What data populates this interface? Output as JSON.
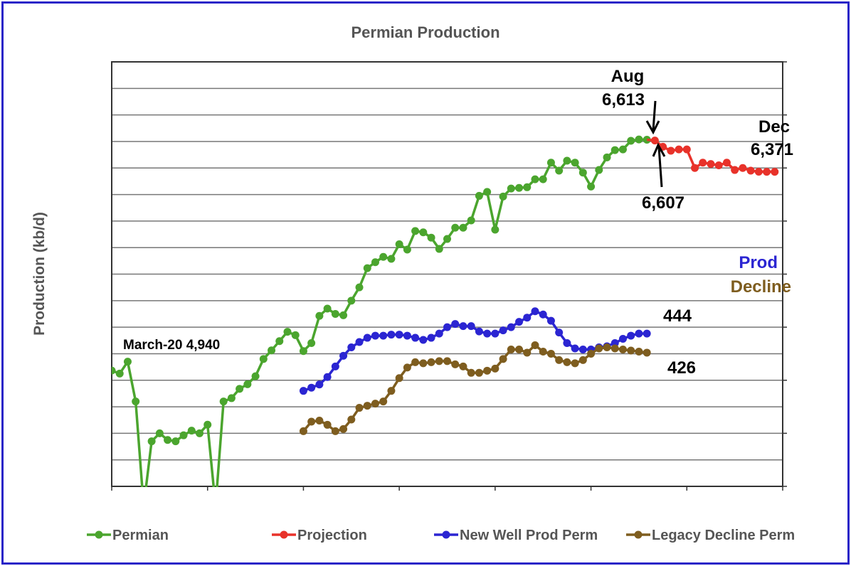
{
  "chart_data": {
    "type": "line",
    "title": "Permian Production",
    "ylabel": "Production (kb/d)",
    "ylim": [
      4000,
      7200
    ],
    "y2lim": [
      300,
      700
    ],
    "yticks": [
      "4,000",
      "4,200",
      "4,400",
      "4,600",
      "4,800",
      "5,000",
      "5,200",
      "5,400",
      "5,600",
      "5,800",
      "6,000",
      "6,200",
      "6,400",
      "6,600",
      "6,800",
      "7,000",
      "7,200"
    ],
    "y2ticks": [
      "300",
      "350",
      "400",
      "450",
      "500",
      "550",
      "600",
      "650",
      "700"
    ],
    "xticks": [
      "Jan-20",
      "Jan-21",
      "Jan-22",
      "Jan-23",
      "Jan-24",
      "Jan-25",
      "Jan-26",
      "Jan-27"
    ],
    "grid": true,
    "legend_position": "bottom",
    "series": [
      {
        "name": "Permian",
        "axis": "left",
        "color": "#4ba52e",
        "start_month": 0,
        "values": [
          4873,
          4850,
          4940,
          4640,
          3850,
          4340,
          4400,
          4350,
          4340,
          4385,
          4420,
          4400,
          4465,
          3850,
          4640,
          4665,
          4735,
          4770,
          4830,
          4960,
          5025,
          5095,
          5165,
          5140,
          5020,
          5080,
          5285,
          5340,
          5300,
          5290,
          5400,
          5500,
          5645,
          5690,
          5730,
          5715,
          5825,
          5785,
          5925,
          5915,
          5875,
          5790,
          5865,
          5950,
          5950,
          6005,
          6190,
          6220,
          5935,
          6185,
          6245,
          6250,
          6255,
          6315,
          6315,
          6440,
          6380,
          6455,
          6440,
          6365,
          6260,
          6385,
          6480,
          6535,
          6540,
          6605,
          6615,
          6613
        ]
      },
      {
        "name": "Projection",
        "axis": "left",
        "color": "#e8322a",
        "start_month": 68,
        "values": [
          6607,
          6560,
          6530,
          6540,
          6540,
          6400,
          6440,
          6430,
          6420,
          6440,
          6385,
          6400,
          6380,
          6372,
          6371,
          6371
        ]
      },
      {
        "name": "New Well Prod Perm",
        "axis": "right",
        "color": "#2b25d2",
        "start_month": 24,
        "values": [
          390,
          393,
          396,
          403,
          413,
          423,
          431,
          436,
          440,
          442,
          442,
          443,
          443,
          442,
          440,
          438,
          440,
          444,
          450,
          453,
          451,
          451,
          446,
          444,
          444,
          447,
          450,
          455,
          459,
          465,
          462,
          456,
          445,
          435,
          430,
          429,
          429,
          431,
          432,
          435,
          439,
          442,
          444,
          444
        ]
      },
      {
        "name": "Legacy Decline Perm",
        "axis": "right",
        "color": "#7e5d1f",
        "start_month": 24,
        "values": [
          352,
          361,
          362,
          358,
          352,
          354,
          363,
          374,
          376,
          378,
          380,
          390,
          402,
          412,
          417,
          416,
          417,
          418,
          418,
          415,
          413,
          407,
          407,
          409,
          411,
          420,
          429,
          429,
          426,
          433,
          427,
          425,
          419,
          417,
          416,
          419,
          425,
          430,
          431,
          430,
          429,
          428,
          427,
          426
        ]
      }
    ],
    "annotations": {
      "aug_month": "Aug",
      "aug_value": "6,613",
      "proj_start": "6,607",
      "dec_month": "Dec",
      "dec_value": "6,371",
      "march": "March-20 4,940",
      "prod": "Prod",
      "decline": "Decline",
      "prod_end": "444",
      "decline_end": "426"
    }
  }
}
